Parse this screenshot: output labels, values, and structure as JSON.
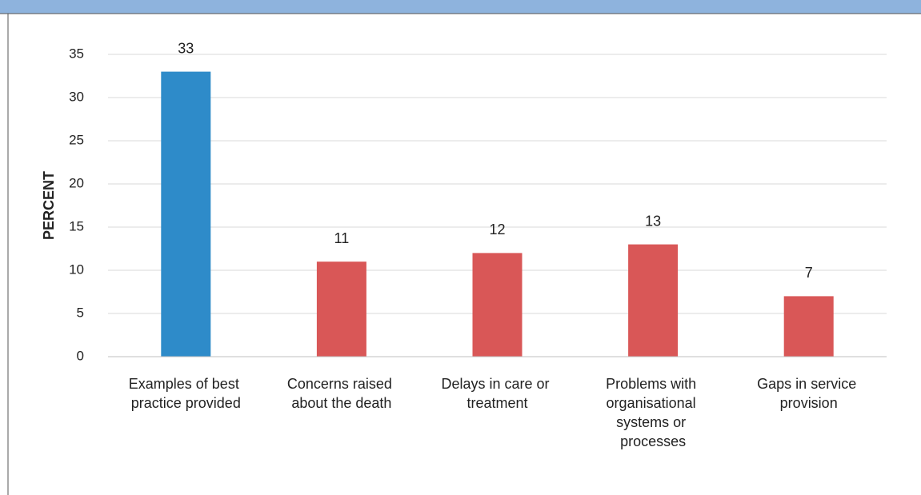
{
  "chart_data": {
    "type": "bar",
    "y_label": "PERCENT",
    "categories": [
      "Examples of best practice provided",
      "Concerns raised about the death",
      "Delays in care or treatment",
      "Problems with organisational systems or processes",
      "Gaps in service provision"
    ],
    "values": [
      33,
      11,
      12,
      13,
      7
    ],
    "colors": [
      "#2e8bc9",
      "#d95757",
      "#d95757",
      "#d95757",
      "#d95757"
    ],
    "ylim": [
      0,
      35
    ],
    "yticks": [
      0,
      5,
      10,
      15,
      20,
      25,
      30,
      35
    ],
    "grid": true
  }
}
